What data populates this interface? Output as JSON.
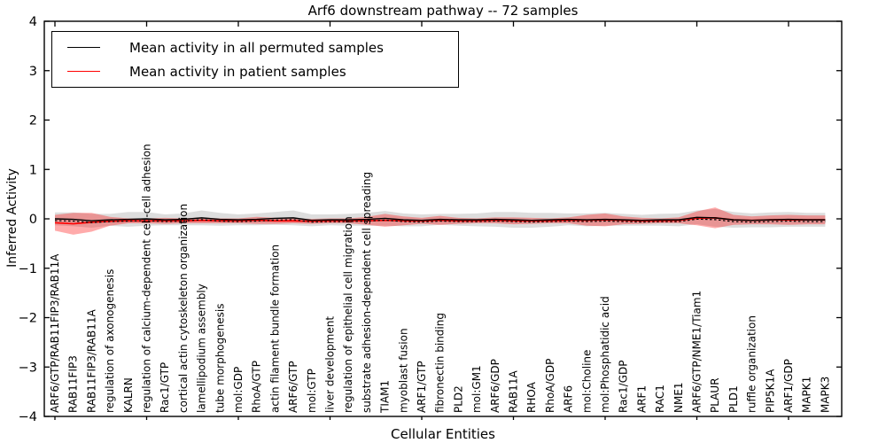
{
  "chart_data": {
    "type": "line",
    "title": "Arf6 downstream pathway -- 72 samples",
    "xlabel": "Cellular Entities",
    "ylabel": "Inferred Activity",
    "ylim": [
      -4,
      4
    ],
    "yticks": [
      4,
      3,
      2,
      1,
      0,
      -1,
      -2,
      -3,
      -4
    ],
    "grid": false,
    "legend_position": "upper-left",
    "legend": [
      {
        "label": "Mean activity in all permuted samples",
        "color": "#000000"
      },
      {
        "label": "Mean activity in patient samples",
        "color": "#ff0000"
      }
    ],
    "band_colors": {
      "permuted": "#808080",
      "patient": "#ff0000"
    },
    "categories": [
      "ARF6/GTP/RAB11FIP3/RAB11A",
      "RAB11FIP3",
      "RAB11FIP3/RAB11A",
      "regulation of axonogenesis",
      "KALRN",
      "regulation of calcium-dependent cell-cell adhesion",
      "Rac1/GTP",
      "cortical actin cytoskeleton organization",
      "lamellipodium assembly",
      "tube morphogenesis",
      "mol:GDP",
      "RhoA/GTP",
      "actin filament bundle formation",
      "ARF6/GTP",
      "mol:GTP",
      "liver development",
      "regulation of epithelial cell migration",
      "substrate adhesion-dependent cell spreading",
      "TIAM1",
      "myoblast fusion",
      "ARF1/GTP",
      "fibronectin binding",
      "PLD2",
      "mol:GM1",
      "ARF6/GDP",
      "RAB11A",
      "RHOA",
      "RhoA/GDP",
      "ARF6",
      "mol:Choline",
      "mol:Phosphatidic acid",
      "Rac1/GDP",
      "ARF1",
      "RAC1",
      "NME1",
      "ARF6/GTP/NME1/Tiam1",
      "PLAUR",
      "PLD1",
      "ruffle organization",
      "PIP5K1A",
      "ARF1/GDP",
      "MAPK1",
      "MAPK3"
    ],
    "series": [
      {
        "name": "Mean activity in all permuted samples",
        "values": [
          0.0,
          -0.01,
          -0.04,
          -0.02,
          -0.01,
          0.0,
          -0.02,
          -0.01,
          0.02,
          -0.01,
          -0.02,
          -0.01,
          0.01,
          0.02,
          -0.03,
          -0.02,
          -0.02,
          -0.01,
          0.01,
          -0.02,
          -0.03,
          -0.01,
          -0.02,
          -0.02,
          -0.01,
          -0.02,
          -0.03,
          -0.02,
          -0.01,
          -0.02,
          -0.01,
          -0.02,
          -0.03,
          -0.02,
          -0.02,
          0.03,
          0.02,
          -0.02,
          -0.03,
          -0.02,
          -0.01,
          -0.02,
          -0.02
        ],
        "std": [
          0.13,
          0.14,
          0.14,
          0.12,
          0.15,
          0.14,
          0.11,
          0.12,
          0.15,
          0.13,
          0.11,
          0.12,
          0.13,
          0.15,
          0.12,
          0.11,
          0.12,
          0.13,
          0.15,
          0.13,
          0.12,
          0.11,
          0.12,
          0.13,
          0.15,
          0.16,
          0.15,
          0.14,
          0.12,
          0.13,
          0.13,
          0.12,
          0.11,
          0.12,
          0.13,
          0.14,
          0.18,
          0.16,
          0.14,
          0.15,
          0.15,
          0.14,
          0.14
        ]
      },
      {
        "name": "Mean activity in patient samples",
        "values": [
          -0.08,
          -0.1,
          -0.07,
          -0.05,
          -0.04,
          -0.04,
          -0.04,
          -0.04,
          -0.03,
          -0.04,
          -0.04,
          -0.03,
          -0.04,
          -0.04,
          -0.05,
          -0.04,
          -0.04,
          -0.04,
          -0.03,
          -0.04,
          -0.04,
          -0.03,
          -0.04,
          -0.04,
          -0.03,
          -0.04,
          -0.04,
          -0.04,
          -0.03,
          -0.03,
          -0.02,
          -0.03,
          -0.04,
          -0.04,
          -0.03,
          0.01,
          0.02,
          -0.02,
          -0.03,
          -0.02,
          -0.02,
          -0.02,
          -0.02
        ],
        "std": [
          0.16,
          0.22,
          0.19,
          0.09,
          0.05,
          0.05,
          0.06,
          0.05,
          0.06,
          0.05,
          0.05,
          0.07,
          0.06,
          0.05,
          0.05,
          0.05,
          0.05,
          0.08,
          0.13,
          0.09,
          0.06,
          0.09,
          0.06,
          0.05,
          0.06,
          0.07,
          0.06,
          0.05,
          0.06,
          0.11,
          0.13,
          0.08,
          0.06,
          0.05,
          0.06,
          0.14,
          0.21,
          0.1,
          0.08,
          0.09,
          0.1,
          0.09,
          0.09
        ]
      }
    ]
  }
}
